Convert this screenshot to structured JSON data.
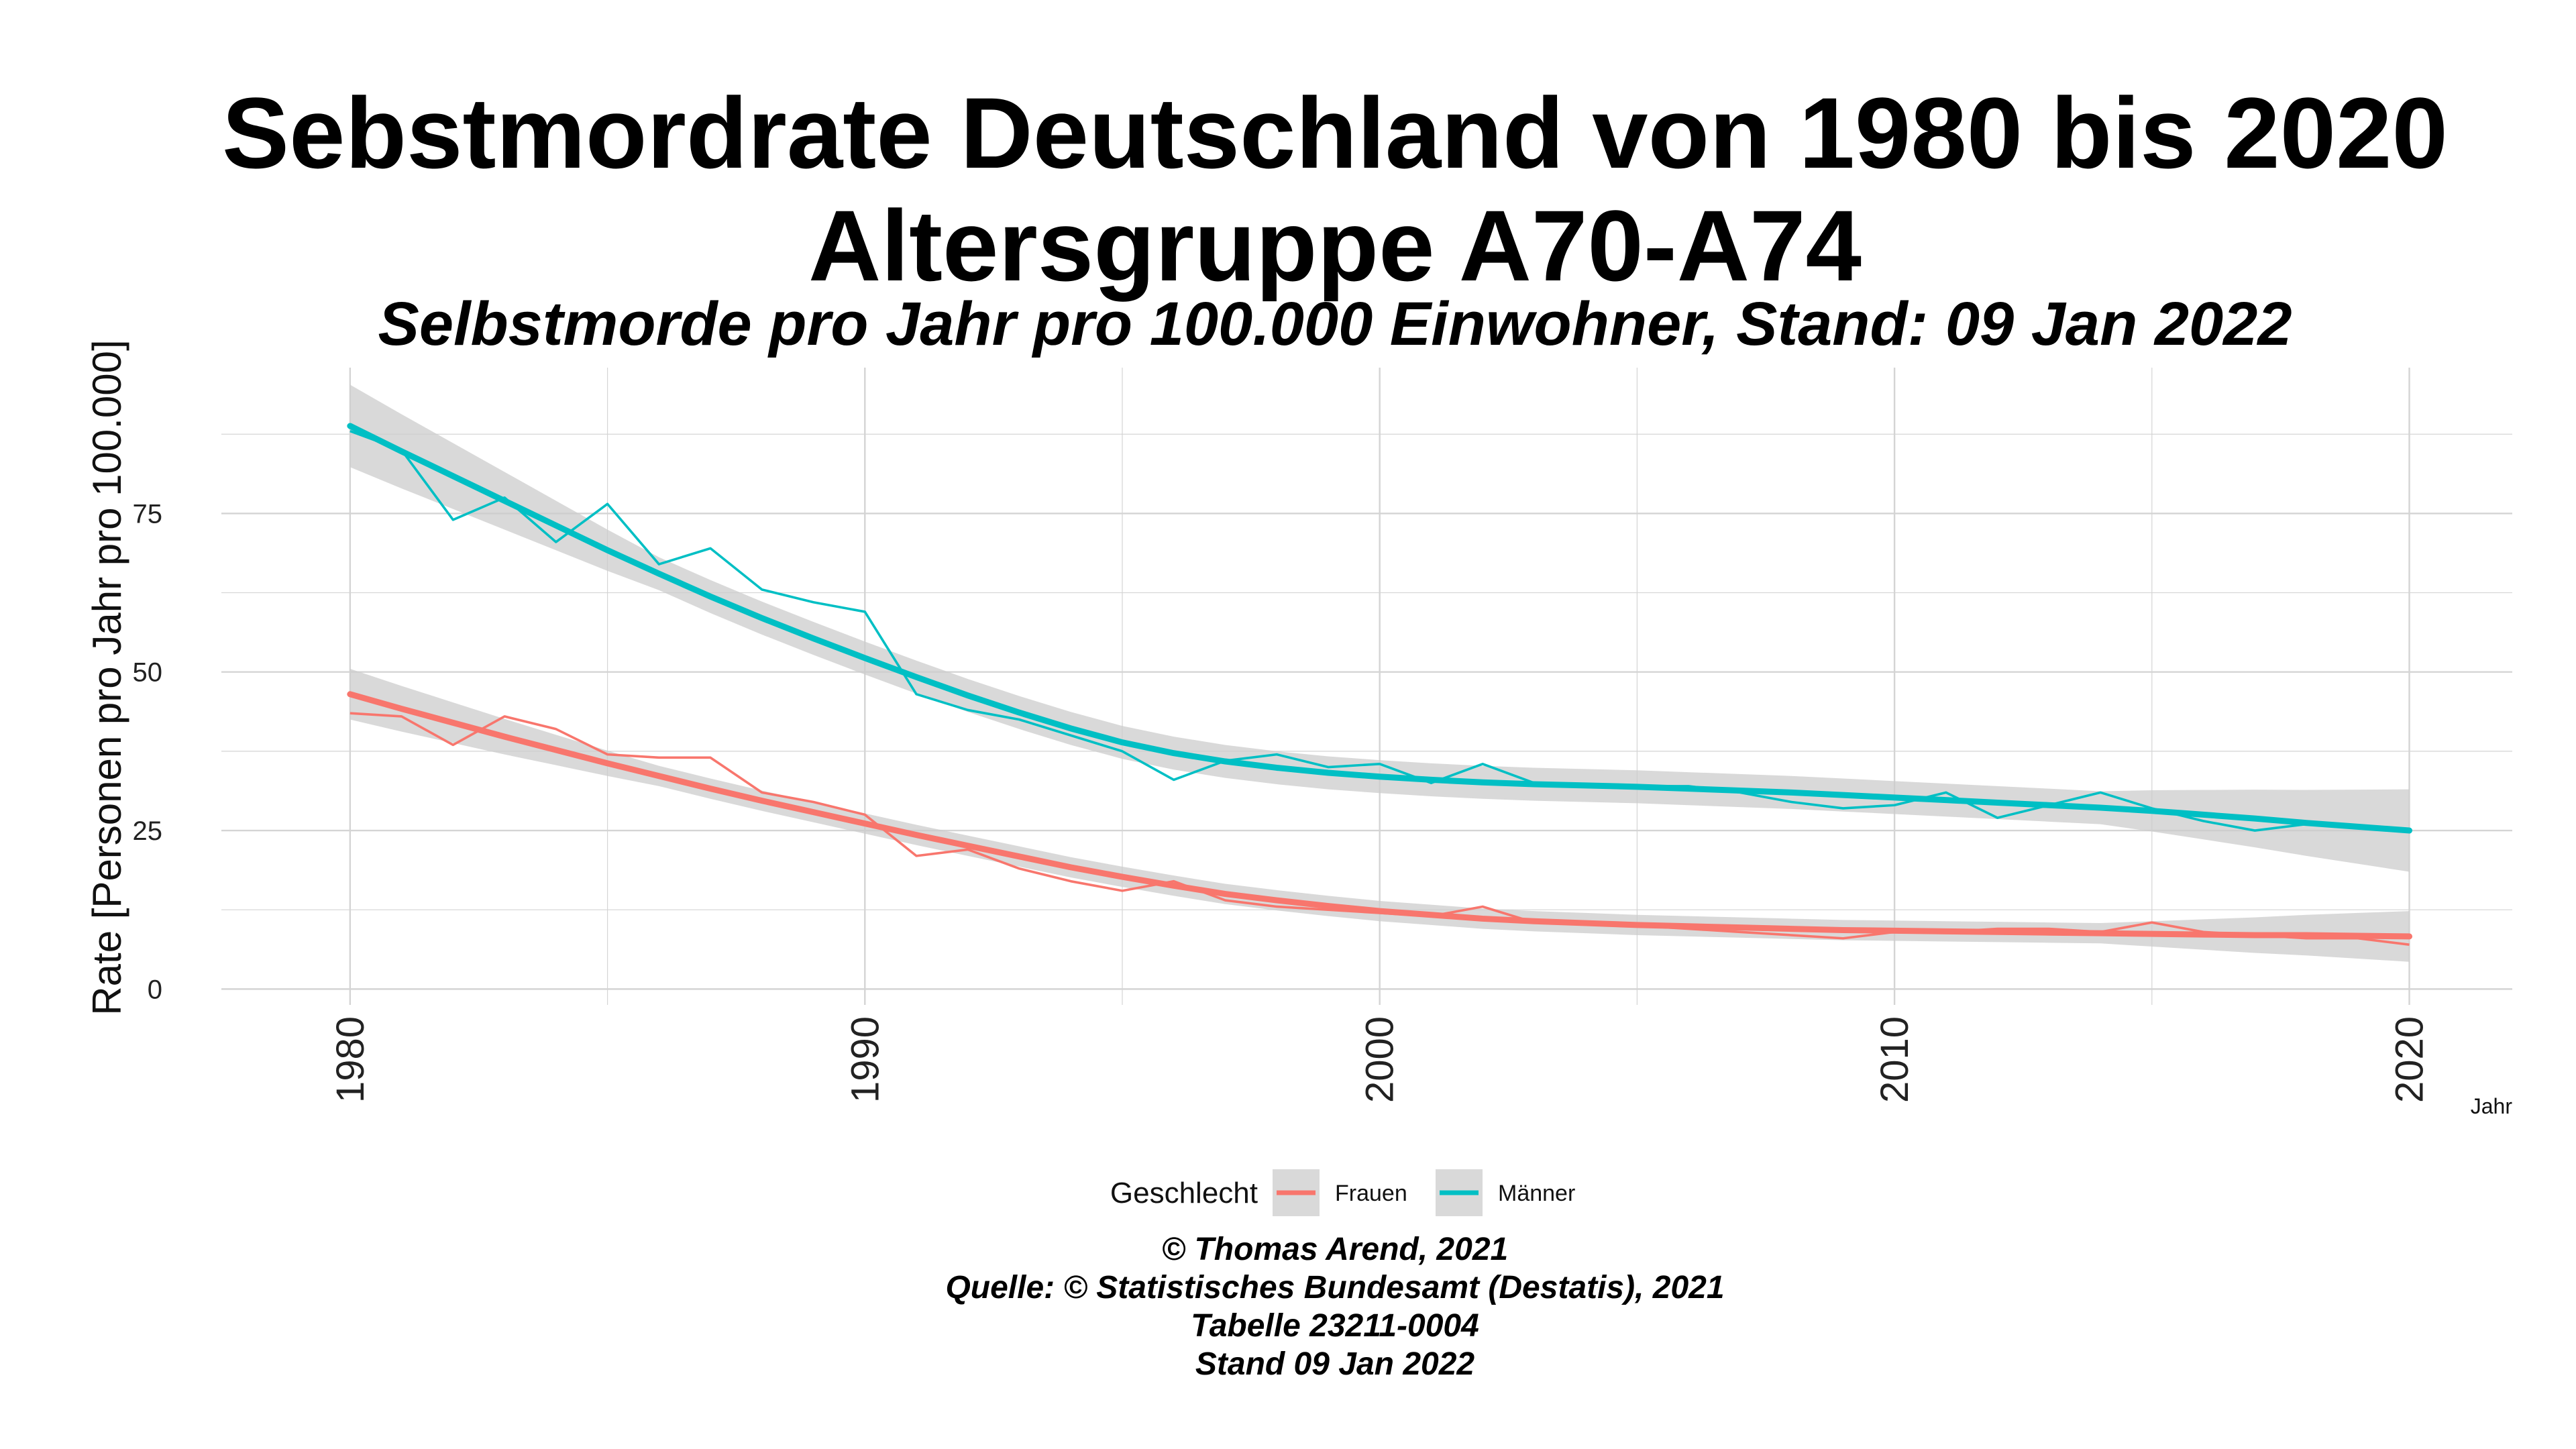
{
  "chart_data": {
    "type": "line",
    "title_line1": "Sebstmordrate Deutschland von  1980 bis 2020",
    "title_line2": "Altersgruppe A70-A74",
    "subtitle": "Selbstmorde pro Jahr pro 100.000 Einwohner, Stand: 09 Jan 2022",
    "xlabel": "Jahr",
    "ylabel": "Rate [Personen pro Jahr pro 100.000]",
    "xlim": [
      1977.5,
      2022
    ],
    "ylim": [
      -2.5,
      98
    ],
    "x_ticks": [
      "1980",
      "1990",
      "2000",
      "2010",
      "2020"
    ],
    "y_ticks": [
      "0",
      "25",
      "50",
      "75"
    ],
    "grid": true,
    "legend": {
      "title": "Geschlecht",
      "position": "bottom",
      "entries": [
        "Frauen",
        "Männer"
      ]
    },
    "x": [
      1980,
      1981,
      1982,
      1983,
      1984,
      1985,
      1986,
      1987,
      1988,
      1989,
      1990,
      1991,
      1992,
      1993,
      1994,
      1995,
      1996,
      1997,
      1998,
      1999,
      2000,
      2001,
      2002,
      2003,
      2004,
      2005,
      2006,
      2007,
      2008,
      2009,
      2010,
      2011,
      2012,
      2013,
      2014,
      2015,
      2016,
      2017,
      2018,
      2019,
      2020
    ],
    "series": [
      {
        "name": "Frauen",
        "color": "#F8766D",
        "values": [
          43.5,
          43,
          38.5,
          43,
          41,
          37,
          36.5,
          36.5,
          31,
          29.5,
          27.5,
          21,
          22,
          19,
          17,
          15.5,
          17,
          14,
          13,
          12.5,
          12,
          11.5,
          13,
          10.5,
          10.5,
          10,
          9.5,
          9,
          8.5,
          8,
          9,
          9,
          9.5,
          9.5,
          9,
          10.5,
          9,
          8.5,
          8,
          8,
          7
        ],
        "trend": [
          46.5,
          44.2,
          42,
          39.8,
          37.7,
          35.6,
          33.6,
          31.6,
          29.7,
          27.9,
          26.1,
          24.3,
          22.6,
          20.9,
          19.2,
          17.7,
          16.3,
          15,
          14,
          13.1,
          12.3,
          11.7,
          11.1,
          10.7,
          10.4,
          10.1,
          9.9,
          9.7,
          9.5,
          9.3,
          9.2,
          9.1,
          9,
          8.9,
          8.8,
          8.7,
          8.6,
          8.5,
          8.5,
          8.4,
          8.3
        ],
        "band": 1.6
      },
      {
        "name": "Männer",
        "color": "#00BFC4",
        "values": [
          88,
          85,
          74,
          77.5,
          70.5,
          76.5,
          67,
          69.5,
          63,
          61,
          59.5,
          46.5,
          44,
          42.5,
          40,
          37.5,
          33,
          36,
          37,
          35,
          35.5,
          32.5,
          35.5,
          32.5,
          32,
          32,
          32,
          31,
          29.5,
          28.5,
          29,
          31,
          27,
          29,
          31,
          28.5,
          26.5,
          25,
          26,
          25.5,
          25
        ],
        "trend": [
          88.8,
          84.8,
          80.9,
          77,
          73.1,
          69.2,
          65.5,
          61.9,
          58.5,
          55.3,
          52.2,
          49.2,
          46.3,
          43.6,
          41.1,
          38.9,
          37.2,
          35.9,
          34.9,
          34.1,
          33.5,
          33,
          32.6,
          32.3,
          32.1,
          31.9,
          31.6,
          31.3,
          31,
          30.6,
          30.2,
          29.8,
          29.4,
          29,
          28.6,
          28.1,
          27.5,
          26.9,
          26.2,
          25.6,
          25
        ],
        "band": 2.6
      }
    ]
  },
  "caption": [
    "© Thomas Arend, 2021",
    "Quelle: © Statistisches Bundesamt (Destatis), 2021",
    "Tabelle 23211-0004",
    "Stand 09 Jan 2022"
  ]
}
